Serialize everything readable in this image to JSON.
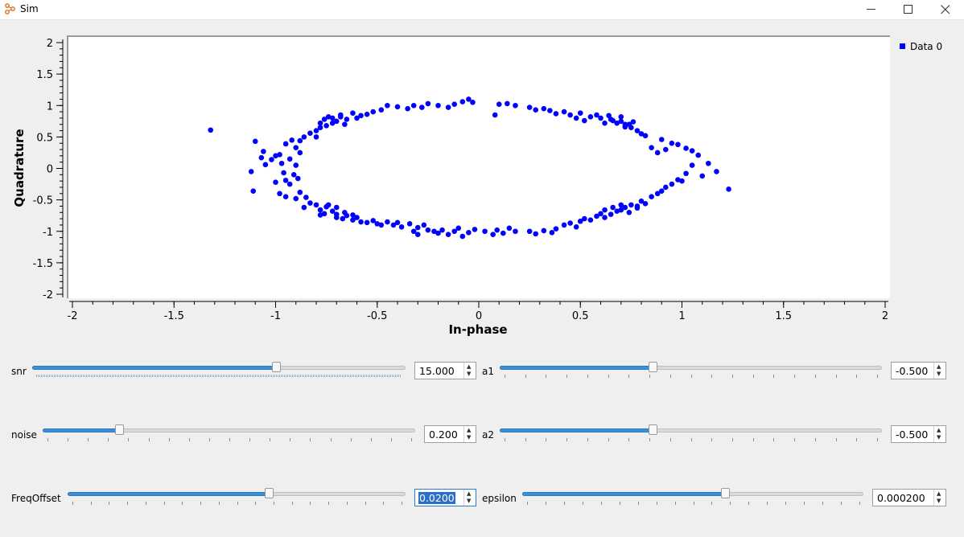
{
  "window": {
    "title": "Sim"
  },
  "legend": {
    "label": "Data 0",
    "color": "#0000ff"
  },
  "chart_data": {
    "type": "scatter",
    "xlabel": "In-phase",
    "ylabel": "Quadrature",
    "xlim": [
      -2,
      2
    ],
    "ylim": [
      -2,
      2
    ],
    "xticks": [
      "-2",
      "-1.5",
      "-1",
      "-0.5",
      "0",
      "0.5",
      "1",
      "1.5",
      "2"
    ],
    "yticks": [
      "2",
      "1.5",
      "1",
      "0.5",
      "0",
      "-0.5",
      "-1",
      "-1.5",
      "-2"
    ],
    "series": [
      {
        "name": "Data 0",
        "color": "#0000ff",
        "points": [
          [
            -1.32,
            0.61
          ],
          [
            -1.1,
            0.43
          ],
          [
            -1.12,
            -0.05
          ],
          [
            -1.11,
            -0.36
          ],
          [
            -1.07,
            0.17
          ],
          [
            -1.06,
            0.27
          ],
          [
            -1.02,
            0.14
          ],
          [
            -1.0,
            0.2
          ],
          [
            -0.98,
            0.22
          ],
          [
            -0.97,
            0.08
          ],
          [
            -1.05,
            0.06
          ],
          [
            -0.95,
            0.39
          ],
          [
            -0.92,
            0.45
          ],
          [
            -0.9,
            0.33
          ],
          [
            -0.88,
            0.25
          ],
          [
            -0.93,
            0.15
          ],
          [
            -0.9,
            0.05
          ],
          [
            -0.96,
            -0.07
          ],
          [
            -0.91,
            -0.1
          ],
          [
            -1.0,
            -0.22
          ],
          [
            -0.95,
            -0.19
          ],
          [
            -0.89,
            -0.16
          ],
          [
            -0.93,
            -0.25
          ],
          [
            -0.98,
            -0.4
          ],
          [
            -0.95,
            -0.45
          ],
          [
            -0.9,
            -0.48
          ],
          [
            -0.88,
            -0.38
          ],
          [
            -0.85,
            -0.46
          ],
          [
            -0.86,
            -0.62
          ],
          [
            -0.83,
            -0.55
          ],
          [
            -0.8,
            -0.58
          ],
          [
            -0.78,
            -0.66
          ],
          [
            -0.76,
            -0.72
          ],
          [
            -0.75,
            -0.61
          ],
          [
            -0.72,
            -0.68
          ],
          [
            -0.7,
            -0.73
          ],
          [
            -0.7,
            -0.78
          ],
          [
            -0.67,
            -0.8
          ],
          [
            -0.65,
            -0.75
          ],
          [
            -0.62,
            -0.82
          ],
          [
            -0.6,
            -0.78
          ],
          [
            -0.58,
            -0.85
          ],
          [
            -0.55,
            -0.86
          ],
          [
            -0.52,
            -0.83
          ],
          [
            -0.5,
            -0.88
          ],
          [
            -0.48,
            -0.9
          ],
          [
            -0.45,
            -0.85
          ],
          [
            -0.42,
            -0.9
          ],
          [
            -0.4,
            -0.86
          ],
          [
            -0.38,
            -0.93
          ],
          [
            -0.34,
            -0.88
          ],
          [
            -0.32,
            -1.0
          ],
          [
            -0.3,
            -1.05
          ],
          [
            -0.3,
            -0.94
          ],
          [
            -0.27,
            -0.9
          ],
          [
            -0.25,
            -0.98
          ],
          [
            -0.22,
            -1.0
          ],
          [
            -0.2,
            -1.03
          ],
          [
            -0.18,
            -0.98
          ],
          [
            -0.15,
            -1.05
          ],
          [
            -0.12,
            -1.0
          ],
          [
            -0.1,
            -0.95
          ],
          [
            -0.08,
            -1.08
          ],
          [
            -0.05,
            -1.02
          ],
          [
            -0.02,
            -0.97
          ],
          [
            0.03,
            -1.0
          ],
          [
            0.07,
            -1.05
          ],
          [
            0.09,
            -0.98
          ],
          [
            0.12,
            -1.03
          ],
          [
            0.15,
            -0.95
          ],
          [
            0.18,
            -1.0
          ],
          [
            0.25,
            -1.0
          ],
          [
            0.28,
            -1.04
          ],
          [
            0.32,
            -0.99
          ],
          [
            0.36,
            -1.02
          ],
          [
            0.38,
            -0.96
          ],
          [
            0.42,
            -0.9
          ],
          [
            0.45,
            -0.87
          ],
          [
            0.48,
            -0.93
          ],
          [
            0.5,
            -0.84
          ],
          [
            0.52,
            -0.8
          ],
          [
            0.55,
            -0.82
          ],
          [
            0.58,
            -0.76
          ],
          [
            0.6,
            -0.72
          ],
          [
            0.62,
            -0.78
          ],
          [
            0.65,
            -0.73
          ],
          [
            0.68,
            -0.68
          ],
          [
            0.7,
            -0.66
          ],
          [
            0.72,
            -0.62
          ],
          [
            0.75,
            -0.58
          ],
          [
            0.78,
            -0.63
          ],
          [
            0.8,
            -0.52
          ],
          [
            0.82,
            -0.56
          ],
          [
            0.85,
            -0.45
          ],
          [
            0.88,
            -0.4
          ],
          [
            0.9,
            -0.36
          ],
          [
            0.92,
            -0.3
          ],
          [
            0.95,
            -0.25
          ],
          [
            0.98,
            -0.18
          ],
          [
            1.0,
            -0.2
          ],
          [
            1.02,
            -0.08
          ],
          [
            1.05,
            0.05
          ],
          [
            1.1,
            -0.12
          ],
          [
            1.13,
            0.08
          ],
          [
            1.17,
            -0.05
          ],
          [
            1.23,
            -0.33
          ],
          [
            1.08,
            0.21
          ],
          [
            1.05,
            0.28
          ],
          [
            1.02,
            0.32
          ],
          [
            0.98,
            0.38
          ],
          [
            0.95,
            0.4
          ],
          [
            0.92,
            0.3
          ],
          [
            0.9,
            0.46
          ],
          [
            0.88,
            0.25
          ],
          [
            0.85,
            0.33
          ],
          [
            0.82,
            0.52
          ],
          [
            0.8,
            0.55
          ],
          [
            0.78,
            0.6
          ],
          [
            0.75,
            0.65
          ],
          [
            0.72,
            0.7
          ],
          [
            0.7,
            0.75
          ],
          [
            0.68,
            0.72
          ],
          [
            0.65,
            0.78
          ],
          [
            0.62,
            0.72
          ],
          [
            0.6,
            0.8
          ],
          [
            0.58,
            0.85
          ],
          [
            0.55,
            0.82
          ],
          [
            0.52,
            0.76
          ],
          [
            0.5,
            0.88
          ],
          [
            0.48,
            0.8
          ],
          [
            0.45,
            0.85
          ],
          [
            0.42,
            0.9
          ],
          [
            0.38,
            0.87
          ],
          [
            0.35,
            0.92
          ],
          [
            0.32,
            0.95
          ],
          [
            0.28,
            0.93
          ],
          [
            0.25,
            0.97
          ],
          [
            0.18,
            1.0
          ],
          [
            0.14,
            1.03
          ],
          [
            0.1,
            1.02
          ],
          [
            0.08,
            0.85
          ],
          [
            -0.03,
            1.05
          ],
          [
            -0.05,
            1.1
          ],
          [
            -0.08,
            1.06
          ],
          [
            -0.12,
            1.02
          ],
          [
            -0.15,
            0.97
          ],
          [
            -0.2,
            1.0
          ],
          [
            -0.25,
            1.03
          ],
          [
            -0.28,
            0.97
          ],
          [
            -0.32,
            1.0
          ],
          [
            -0.35,
            0.95
          ],
          [
            -0.4,
            0.98
          ],
          [
            -0.45,
            1.0
          ],
          [
            -0.48,
            0.93
          ],
          [
            -0.52,
            0.9
          ],
          [
            -0.55,
            0.86
          ],
          [
            -0.58,
            0.84
          ],
          [
            -0.6,
            0.8
          ],
          [
            -0.62,
            0.88
          ],
          [
            -0.65,
            0.78
          ],
          [
            -0.68,
            0.82
          ],
          [
            -0.7,
            0.75
          ],
          [
            -0.72,
            0.72
          ],
          [
            -0.75,
            0.68
          ],
          [
            -0.78,
            0.65
          ],
          [
            -0.8,
            0.6
          ],
          [
            -0.8,
            0.5
          ],
          [
            -0.83,
            0.56
          ],
          [
            -0.86,
            0.5
          ],
          [
            -0.88,
            0.44
          ],
          [
            -0.68,
            0.85
          ],
          [
            -0.72,
            0.8
          ],
          [
            -0.76,
            0.78
          ],
          [
            -0.78,
            0.72
          ],
          [
            -0.66,
            0.7
          ],
          [
            -0.74,
            0.82
          ],
          [
            0.66,
            0.76
          ],
          [
            0.7,
            0.82
          ],
          [
            0.74,
            0.7
          ],
          [
            0.76,
            0.74
          ],
          [
            0.64,
            0.84
          ],
          [
            0.72,
            0.66
          ],
          [
            -0.74,
            -0.58
          ],
          [
            -0.7,
            -0.62
          ],
          [
            -0.66,
            -0.7
          ],
          [
            -0.78,
            -0.74
          ],
          [
            -0.62,
            -0.74
          ],
          [
            0.66,
            -0.62
          ],
          [
            0.7,
            -0.58
          ],
          [
            0.74,
            -0.7
          ],
          [
            0.62,
            -0.66
          ],
          [
            0.78,
            -0.6
          ]
        ]
      }
    ]
  },
  "controls": {
    "snr": {
      "label": "snr",
      "value": "15.000",
      "fraction": 0.66
    },
    "noise": {
      "label": "noise",
      "value": "0.200",
      "fraction": 0.2
    },
    "freq": {
      "label": "FreqOffset",
      "value": "0.0200",
      "fraction": 0.6
    },
    "a1": {
      "label": "a1",
      "value": "-0.500",
      "fraction": 0.4
    },
    "a2": {
      "label": "a2",
      "value": "-0.500",
      "fraction": 0.4
    },
    "epsilon": {
      "label": "epsilon",
      "value": "0.000200",
      "fraction": 0.6
    }
  },
  "colors": {
    "accent": "#3a8fd8",
    "point": "#0000ff"
  }
}
